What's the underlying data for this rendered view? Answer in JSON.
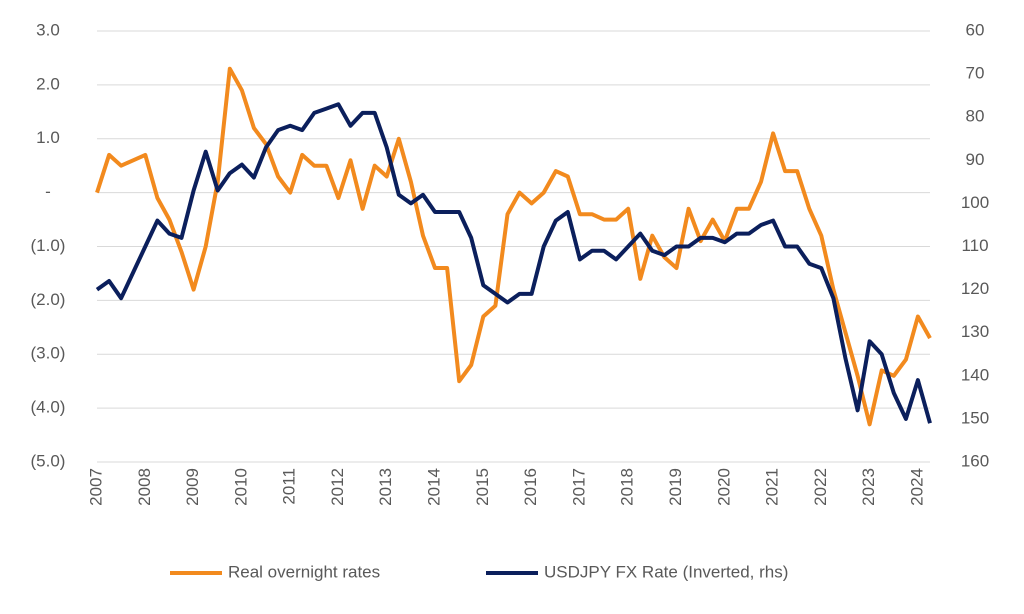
{
  "chart_data": {
    "type": "line",
    "x": [
      2007.0,
      2007.25,
      2007.5,
      2007.75,
      2008.0,
      2008.25,
      2008.5,
      2008.75,
      2009.0,
      2009.25,
      2009.5,
      2009.75,
      2010.0,
      2010.25,
      2010.5,
      2010.75,
      2011.0,
      2011.25,
      2011.5,
      2011.75,
      2012.0,
      2012.25,
      2012.5,
      2012.75,
      2013.0,
      2013.25,
      2013.5,
      2013.75,
      2014.0,
      2014.25,
      2014.5,
      2014.75,
      2015.0,
      2015.25,
      2015.5,
      2015.75,
      2016.0,
      2016.25,
      2016.5,
      2016.75,
      2017.0,
      2017.25,
      2017.5,
      2017.75,
      2018.0,
      2018.25,
      2018.5,
      2018.75,
      2019.0,
      2019.25,
      2019.5,
      2019.75,
      2020.0,
      2020.25,
      2020.5,
      2020.75,
      2021.0,
      2021.25,
      2021.5,
      2021.75,
      2022.0,
      2022.25,
      2022.5,
      2022.75,
      2023.0,
      2023.25,
      2023.5,
      2023.75,
      2024.0,
      2024.25
    ],
    "series": [
      {
        "name": "Real overnight rates",
        "color": "#f28a1e",
        "values": [
          0.0,
          0.7,
          0.5,
          0.6,
          0.7,
          -0.1,
          -0.5,
          -1.1,
          -1.8,
          -1.0,
          0.2,
          2.3,
          1.9,
          1.2,
          0.9,
          0.3,
          0.0,
          0.7,
          0.5,
          0.5,
          -0.1,
          0.6,
          -0.3,
          0.5,
          0.3,
          1.0,
          0.2,
          -0.8,
          -1.4,
          -1.4,
          -3.5,
          -3.2,
          -2.3,
          -2.1,
          -0.4,
          0.0,
          -0.2,
          0.0,
          0.4,
          0.3,
          -0.4,
          -0.4,
          -0.5,
          -0.5,
          -0.3,
          -1.6,
          -0.8,
          -1.2,
          -1.4,
          -0.3,
          -0.9,
          -0.5,
          -0.9,
          -0.3,
          -0.3,
          0.2,
          1.1,
          0.4,
          0.4,
          -0.3,
          -0.8,
          -1.8,
          -2.6,
          -3.4,
          -4.3,
          -3.3,
          -3.4,
          -3.1,
          -2.3,
          -2.7
        ]
      },
      {
        "name": "USDJPY FX Rate (Inverted, rhs)",
        "color": "#0b1f5c",
        "axis": "y2",
        "values": [
          120,
          118,
          122,
          116,
          110,
          104,
          107,
          108,
          97,
          88,
          97,
          93,
          91,
          94,
          87,
          83,
          82,
          83,
          79,
          78,
          77,
          82,
          79,
          79,
          87,
          98,
          100,
          98,
          102,
          102,
          102,
          108,
          119,
          121,
          123,
          121,
          121,
          110,
          104,
          102,
          113,
          111,
          111,
          113,
          110,
          107,
          111,
          112,
          110,
          110,
          108,
          108,
          109,
          107,
          107,
          105,
          104,
          110,
          110,
          114,
          115,
          122,
          136,
          148,
          132,
          135,
          144,
          150,
          141,
          151
        ]
      }
    ],
    "xlim": [
      2007,
      2024.25
    ],
    "xticks": [
      2007,
      2008,
      2009,
      2010,
      2011,
      2012,
      2013,
      2014,
      2015,
      2016,
      2017,
      2018,
      2019,
      2020,
      2021,
      2022,
      2023,
      2024
    ],
    "ylim": [
      -5,
      3
    ],
    "yticks": [
      {
        "value": -5,
        "label": "(5.0)"
      },
      {
        "value": -4,
        "label": "(4.0)"
      },
      {
        "value": -3,
        "label": "(3.0)"
      },
      {
        "value": -2,
        "label": "(2.0)"
      },
      {
        "value": -1,
        "label": "(1.0)"
      },
      {
        "value": 0,
        "label": "-"
      },
      {
        "value": 1,
        "label": "1.0"
      },
      {
        "value": 2,
        "label": "2.0"
      },
      {
        "value": 3,
        "label": "3.0"
      }
    ],
    "y2lim": [
      60,
      160
    ],
    "y2_inverted": true,
    "y2ticks": [
      60,
      70,
      80,
      90,
      100,
      110,
      120,
      130,
      140,
      150,
      160
    ],
    "grid": true,
    "legend": "bottom"
  }
}
